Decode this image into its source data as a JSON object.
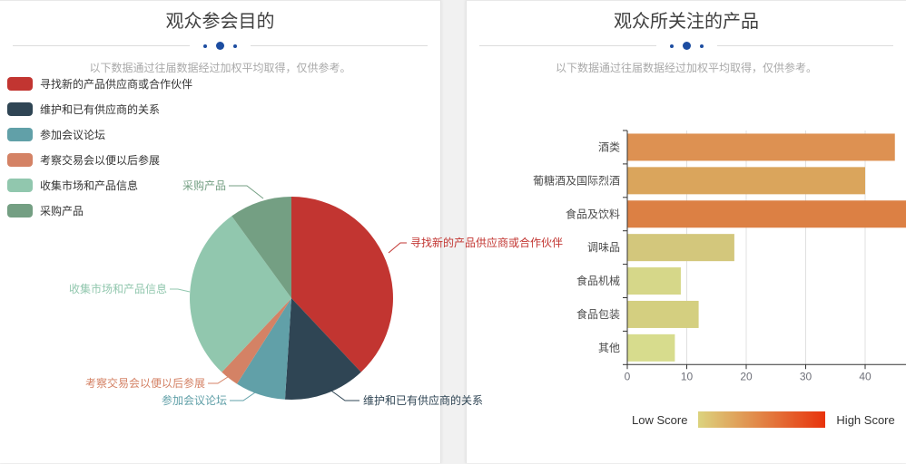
{
  "colors": {
    "accent_blue": "#1c4da1",
    "divider_line": "#dcdcdc",
    "axis": "#333333",
    "gridline": "#e0e0e0",
    "category_label": "#4d4d4d",
    "tick_label": "#6e7079"
  },
  "left_panel": {
    "title": "观众参会目的",
    "subtitle": "以下数据通过往届数据经过加权平均取得，仅供参考。"
  },
  "right_panel": {
    "title": "观众所关注的产品",
    "subtitle": "以下数据通过往届数据经过加权平均取得，仅供参考。",
    "visualmap": {
      "low_label": "Low Score",
      "high_label": "High Score",
      "low_color": "#dcd37e",
      "high_color": "#e8330c"
    }
  },
  "chart_data": [
    {
      "type": "pie",
      "title": "观众参会目的",
      "legend_position": "top-left",
      "unit": "percent-estimated",
      "slices": [
        {
          "label": "寻找新的产品供应商或合作伙伴",
          "value": 38,
          "color": "#c23531"
        },
        {
          "label": "维护和已有供应商的关系",
          "value": 13,
          "color": "#2f4554"
        },
        {
          "label": "参加会议论坛",
          "value": 8,
          "color": "#61a0a8"
        },
        {
          "label": "考察交易会以便以后参展",
          "value": 3,
          "color": "#d48265"
        },
        {
          "label": "收集市场和产品信息",
          "value": 28,
          "color": "#91c7ae"
        },
        {
          "label": "采购产品",
          "value": 10,
          "color": "#749f83"
        }
      ]
    },
    {
      "type": "bar",
      "orientation": "horizontal",
      "title": "观众所关注的产品",
      "categories": [
        "酒类",
        "葡糖酒及国际烈酒",
        "食品及饮料",
        "调味品",
        "食品机械",
        "食品包装",
        "其他"
      ],
      "values": [
        45,
        40,
        47,
        18,
        9,
        12,
        8
      ],
      "bar_colors": [
        "#dd9152",
        "#daa55c",
        "#dc8044",
        "#d3c77c",
        "#d6d789",
        "#d4cf80",
        "#d7dc8d"
      ],
      "x_ticks": [
        0,
        10,
        20,
        30,
        40
      ],
      "xlim": [
        0,
        47
      ],
      "xlabel": "",
      "ylabel": "",
      "grid": "vertical-lines",
      "legend": {
        "low": "Low Score",
        "high": "High Score"
      }
    }
  ]
}
